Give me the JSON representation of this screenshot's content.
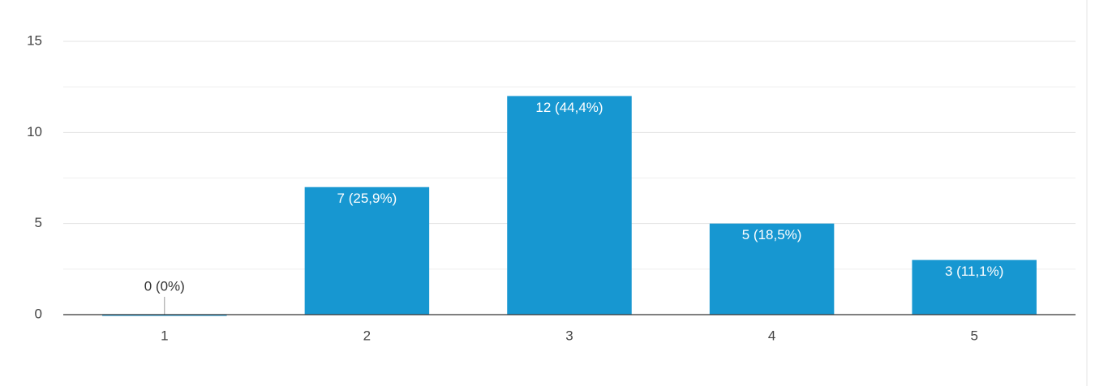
{
  "chart_data": {
    "type": "bar",
    "categories": [
      "1",
      "2",
      "3",
      "4",
      "5"
    ],
    "values": [
      0,
      7,
      12,
      5,
      3
    ],
    "value_labels": [
      "0 (0%)",
      "7 (25,9%)",
      "12 (44,4%)",
      "5 (18,5%)",
      "3 (11,1%)"
    ],
    "color": "#1797d1",
    "ylim": [
      0,
      15
    ],
    "yticks": [
      0,
      5,
      10,
      15
    ],
    "grid": true
  }
}
